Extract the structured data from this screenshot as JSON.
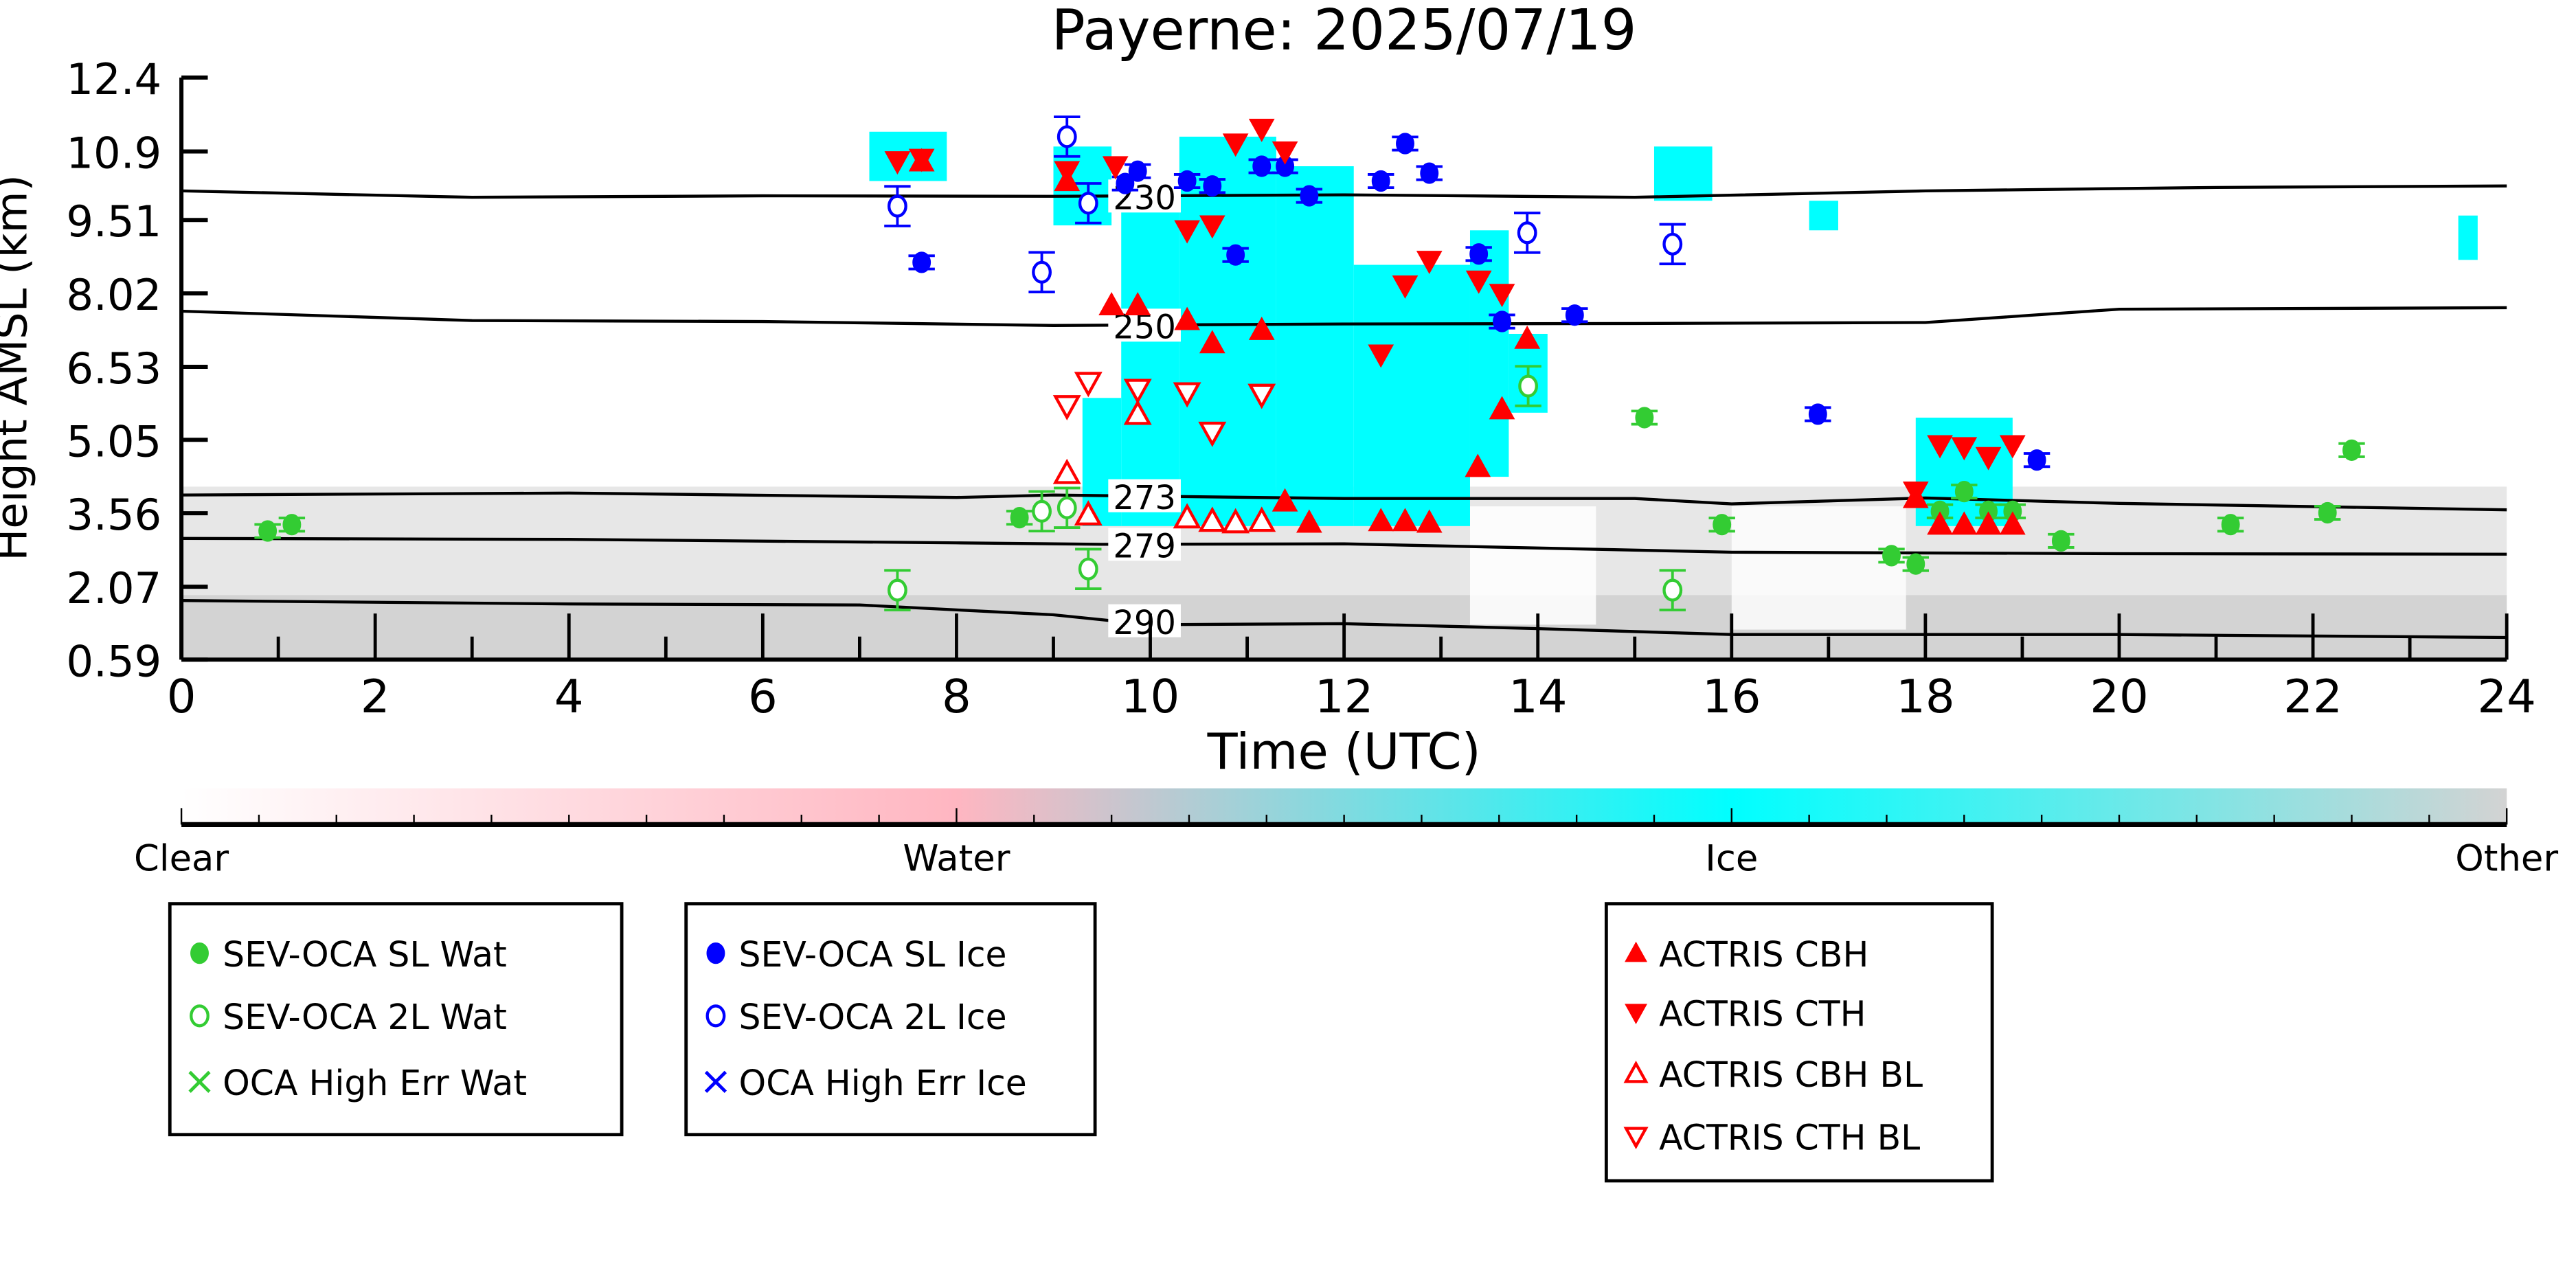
{
  "chart_data": {
    "type": "scatter",
    "title": "Payerne: 2025/07/19",
    "xlabel": "Time (UTC)",
    "ylabel": "Height AMSL (km)",
    "xlim": [
      0,
      24
    ],
    "ylim": [
      0.59,
      12.4
    ],
    "xticks": [
      0,
      2,
      4,
      6,
      8,
      10,
      12,
      14,
      16,
      18,
      20,
      22,
      24
    ],
    "yticks": [
      0.59,
      2.07,
      3.56,
      5.05,
      6.53,
      8.02,
      9.51,
      10.9,
      12.4
    ],
    "ytick_labels": [
      "0.59",
      "2.07",
      "3.56",
      "5.05",
      "6.53",
      "8.02",
      "9.51",
      "10.9",
      "12.4"
    ],
    "isotherms": [
      {
        "label": "230",
        "label_t": 9.6,
        "t": [
          0,
          3,
          6,
          9,
          12,
          15,
          18,
          21,
          24
        ],
        "h": [
          10.1,
          9.97,
          10.0,
          9.99,
          10.02,
          9.97,
          10.1,
          10.17,
          10.2
        ]
      },
      {
        "label": "250",
        "label_t": 9.6,
        "t": [
          0,
          3,
          6,
          9,
          12,
          15,
          18,
          20,
          24
        ],
        "h": [
          7.66,
          7.47,
          7.45,
          7.37,
          7.4,
          7.41,
          7.43,
          7.7,
          7.73
        ]
      },
      {
        "label": "273",
        "label_t": 9.6,
        "t": [
          0,
          4,
          8,
          9,
          12,
          15,
          16,
          18,
          20,
          24
        ],
        "h": [
          3.93,
          3.97,
          3.88,
          3.93,
          3.86,
          3.86,
          3.75,
          3.87,
          3.76,
          3.63
        ]
      },
      {
        "label": "279",
        "label_t": 9.6,
        "t": [
          0,
          4,
          8,
          9.5,
          12,
          16,
          20,
          24
        ],
        "h": [
          3.05,
          3.03,
          2.96,
          2.93,
          2.94,
          2.77,
          2.74,
          2.73
        ]
      },
      {
        "label": "290",
        "label_t": 9.6,
        "t": [
          0,
          4,
          7,
          9,
          10,
          12,
          14,
          16,
          20,
          24
        ],
        "h": [
          1.79,
          1.72,
          1.7,
          1.5,
          1.3,
          1.32,
          1.22,
          1.1,
          1.1,
          1.04
        ]
      }
    ],
    "series": [
      {
        "name": "SEV-OCA SL Wat",
        "marker": "circle",
        "fill": true,
        "color": "#33cc33",
        "t": [
          0.89,
          1.14,
          8.65,
          15.1,
          15.9,
          17.65,
          17.9,
          18.15,
          18.4,
          18.65,
          18.9,
          19.4,
          21.15,
          22.15,
          22.4
        ],
        "h": [
          3.2,
          3.33,
          3.47,
          5.5,
          3.33,
          2.7,
          2.53,
          3.6,
          4.0,
          3.6,
          3.6,
          3.0,
          3.33,
          3.57,
          4.84
        ]
      },
      {
        "name": "SEV-OCA 2L Wat",
        "marker": "circle",
        "fill": false,
        "color": "#33cc33",
        "t": [
          7.39,
          8.88,
          9.14,
          9.36,
          13.9,
          15.39
        ],
        "h": [
          2.0,
          3.6,
          3.67,
          2.43,
          6.14,
          2.0
        ]
      },
      {
        "name": "OCA High Err Wat",
        "marker": "x",
        "fill": false,
        "color": "#33cc33",
        "t": [],
        "h": []
      },
      {
        "name": "SEV-OCA SL Ice",
        "marker": "circle",
        "fill": true,
        "color": "#0000ff",
        "t": [
          7.64,
          9.74,
          9.87,
          10.38,
          10.64,
          10.88,
          11.15,
          11.39,
          11.64,
          12.38,
          12.63,
          12.88,
          13.39,
          13.63,
          14.38,
          16.89,
          19.15
        ],
        "h": [
          8.65,
          10.25,
          10.5,
          10.3,
          10.2,
          8.8,
          10.6,
          10.6,
          10.0,
          10.3,
          11.06,
          10.46,
          8.82,
          7.45,
          7.58,
          5.57,
          4.64
        ]
      },
      {
        "name": "SEV-OCA 2L Ice",
        "marker": "circle",
        "fill": false,
        "color": "#0000ff",
        "t": [
          7.39,
          8.88,
          9.14,
          9.36,
          13.89,
          15.39
        ],
        "h": [
          9.79,
          8.45,
          11.2,
          9.85,
          9.25,
          9.02
        ]
      },
      {
        "name": "OCA High Err Ice",
        "marker": "x",
        "fill": false,
        "color": "#0000ff",
        "t": [],
        "h": []
      },
      {
        "name": "ACTRIS CBH",
        "marker": "triangle-up",
        "fill": true,
        "color": "#ff0000",
        "t": [
          7.64,
          9.14,
          9.6,
          9.87,
          10.38,
          10.64,
          11.15,
          11.39,
          11.64,
          12.38,
          12.63,
          12.88,
          13.38,
          13.63,
          13.89,
          17.9,
          18.15,
          18.4,
          18.65,
          18.9
        ],
        "h": [
          10.7,
          10.3,
          7.78,
          7.78,
          7.48,
          7.01,
          7.28,
          3.8,
          3.37,
          3.4,
          3.4,
          3.37,
          4.5,
          5.67,
          7.1,
          3.87,
          3.33,
          3.33,
          3.33,
          3.33
        ]
      },
      {
        "name": "ACTRIS CTH",
        "marker": "triangle-down",
        "fill": true,
        "color": "#ff0000",
        "t": [
          7.39,
          7.64,
          9.14,
          9.64,
          10.38,
          10.64,
          10.88,
          11.15,
          11.39,
          12.38,
          12.63,
          12.88,
          13.39,
          13.63,
          17.9,
          18.15,
          18.4,
          18.65,
          18.9
        ],
        "h": [
          10.7,
          10.75,
          10.5,
          10.6,
          9.3,
          9.4,
          11.06,
          11.36,
          10.9,
          6.78,
          8.18,
          8.68,
          8.28,
          8.01,
          4.0,
          4.94,
          4.9,
          4.7,
          4.94
        ]
      },
      {
        "name": "ACTRIS CBH BL",
        "marker": "triangle-up",
        "fill": false,
        "color": "#ff0000",
        "t": [
          9.14,
          9.36,
          9.87,
          10.38,
          10.64,
          10.88,
          11.15
        ],
        "h": [
          4.37,
          3.53,
          5.57,
          3.47,
          3.4,
          3.37,
          3.4
        ]
      },
      {
        "name": "ACTRIS CTH BL",
        "marker": "triangle-down",
        "fill": false,
        "color": "#ff0000",
        "t": [
          9.14,
          9.36,
          9.87,
          10.38,
          10.64,
          11.15
        ],
        "h": [
          5.74,
          6.21,
          6.07,
          6.0,
          5.2,
          5.97
        ]
      }
    ],
    "colorbar": {
      "labels": [
        "Clear",
        "Water",
        "Ice",
        "Other"
      ],
      "colors": [
        "#ffffff",
        "#ffb6c1",
        "#00ffff",
        "#d3d3d3"
      ]
    },
    "legends": [
      [
        "SEV-OCA SL Wat",
        "SEV-OCA 2L Wat",
        "OCA High Err Wat"
      ],
      [
        "SEV-OCA SL Ice",
        "SEV-OCA 2L Ice",
        "OCA High Err Ice"
      ],
      [
        "ACTRIS CBH",
        "ACTRIS CTH",
        "ACTRIS CBH BL",
        "ACTRIS CTH BL"
      ]
    ]
  }
}
